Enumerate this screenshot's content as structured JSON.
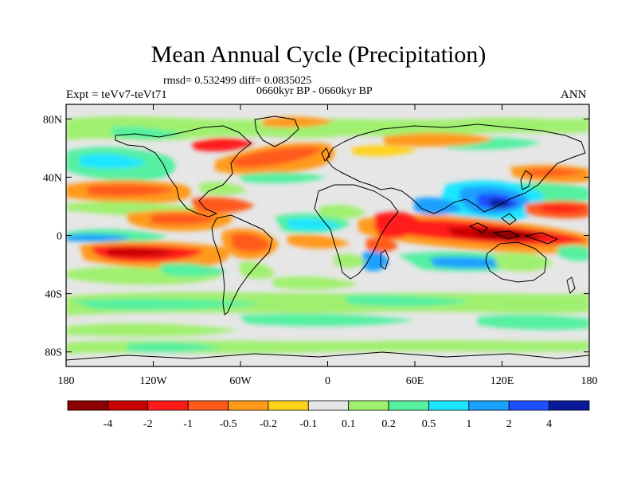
{
  "title": "Mean Annual Cycle (Precipitation)",
  "stats": "rmsd= 0.532499 diff= 0.0835025",
  "experiment": "Expt = teVv7-teVt71",
  "period": "0660kyr BP - 0660kyr BP",
  "season": "ANN",
  "lat_ticks": [
    "80N",
    "40N",
    "0",
    "40S",
    "80S"
  ],
  "lon_ticks": [
    "180",
    "120W",
    "60W",
    "0",
    "60E",
    "120E",
    "180"
  ],
  "colorbar": {
    "labels": [
      "-4",
      "-2",
      "-1",
      "-0.5",
      "-0.2",
      "-0.1",
      "0.1",
      "0.2",
      "0.5",
      "1",
      "2",
      "4"
    ],
    "colors": [
      "#8b0000",
      "#c80000",
      "#ff1a1a",
      "#ff5a1a",
      "#ff9a1a",
      "#ffd21a",
      "#e6e6e6",
      "#a0f070",
      "#55f0a0",
      "#1ae6ff",
      "#1aa0ff",
      "#1a50ff",
      "#0a1a9a"
    ]
  },
  "map": {
    "background": "#e6e6e6",
    "projection": "cylindrical equidistant",
    "lon_range": [
      -180,
      180
    ],
    "lat_range": [
      -90,
      90
    ]
  }
}
